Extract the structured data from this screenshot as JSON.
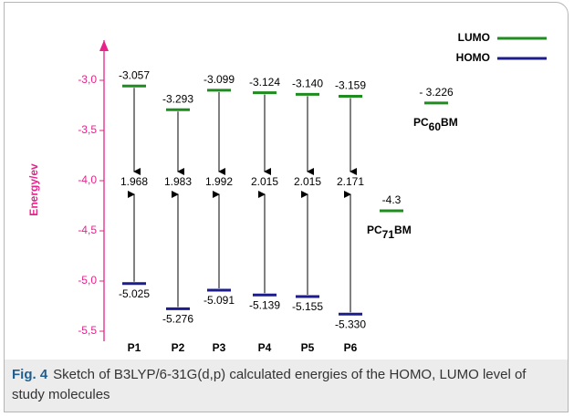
{
  "chart_data": {
    "type": "energy-levels",
    "y_label": "Energy/ev",
    "categories": [
      "P1",
      "P2",
      "P3",
      "P4",
      "P5",
      "P6"
    ],
    "series": [
      {
        "name": "LUMO",
        "color": "#1e8c1e",
        "values": [
          -3.057,
          -3.293,
          -3.099,
          -3.124,
          -3.14,
          -3.159
        ],
        "value_labels": [
          "-3.057",
          "-3.293",
          "-3.099",
          "-3.124",
          "-3.140",
          "-3.159"
        ]
      },
      {
        "name": "HOMO",
        "color": "#1c1c8c",
        "values": [
          -5.025,
          -5.276,
          -5.091,
          -5.139,
          -5.155,
          -5.33
        ],
        "value_labels": [
          "-5.025",
          "-5.276",
          "-5.091",
          "-5.139",
          "-5.155",
          "-5.330"
        ]
      }
    ],
    "gaps": [
      1.968,
      1.983,
      1.992,
      2.015,
      2.015,
      2.171
    ],
    "acceptors": [
      {
        "name": [
          "PC",
          "60",
          "BM"
        ],
        "lumo": -3.226,
        "lumo_label": "- 3.226"
      },
      {
        "name": [
          "PC",
          "71",
          "BM"
        ],
        "lumo": -4.3,
        "lumo_label": "-4.3"
      }
    ],
    "ylim": [
      -5.6,
      -2.6
    ],
    "yticks": [
      {
        "value": -3.0,
        "label": "-3,0"
      },
      {
        "value": -3.5,
        "label": "-3,5"
      },
      {
        "value": -4.0,
        "label": "-4,0"
      },
      {
        "value": -4.5,
        "label": "-4,5"
      },
      {
        "value": -5.0,
        "label": "-5,0"
      },
      {
        "value": -5.5,
        "label": "-5,5"
      }
    ],
    "axis_color": "#e8218c"
  },
  "caption": {
    "label": "Fig. 4",
    "text": "Sketch of B3LYP/6-31G(d,p) calculated energies of the HOMO, LUMO level of study molecules"
  }
}
